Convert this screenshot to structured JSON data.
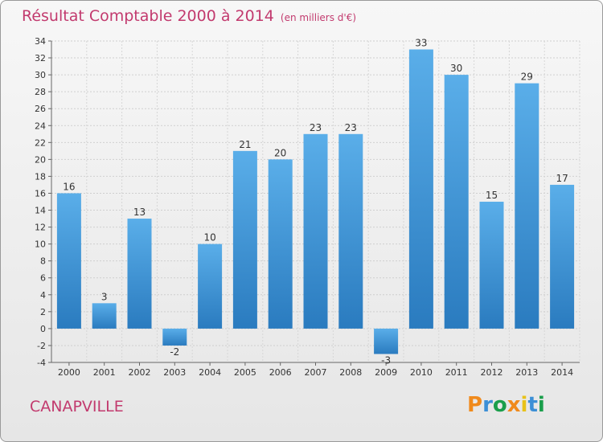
{
  "header": {
    "title": "Résultat Comptable 2000 à 2014",
    "subtitle": "(en milliers d'€)"
  },
  "footer": {
    "commune": "CANAPVILLE",
    "brand": "Proxiti"
  },
  "colors": {
    "accent": "#c23a6e",
    "bar_top": "#5aaee9",
    "bar_bottom": "#2a7bbf",
    "brand_letters": [
      "#f08a1c",
      "#3c8fd6",
      "#1a9e4b",
      "#f08a1c",
      "#e8c21a",
      "#3c8fd6",
      "#1a9e4b"
    ]
  },
  "chart_data": {
    "type": "bar",
    "title": "Résultat Comptable 2000 à 2014",
    "unit": "(en milliers d'€)",
    "categories": [
      "2000",
      "2001",
      "2002",
      "2003",
      "2004",
      "2005",
      "2006",
      "2007",
      "2008",
      "2009",
      "2010",
      "2011",
      "2012",
      "2013",
      "2014"
    ],
    "values": [
      16,
      3,
      13,
      -2,
      10,
      21,
      20,
      23,
      23,
      -3,
      33,
      30,
      15,
      29,
      17
    ],
    "ylim": [
      -4,
      34
    ],
    "yticks": [
      -4,
      -2,
      0,
      2,
      4,
      6,
      8,
      10,
      12,
      14,
      16,
      18,
      20,
      22,
      24,
      26,
      28,
      30,
      32,
      34
    ],
    "grid": true,
    "xlabel": "",
    "ylabel": ""
  }
}
